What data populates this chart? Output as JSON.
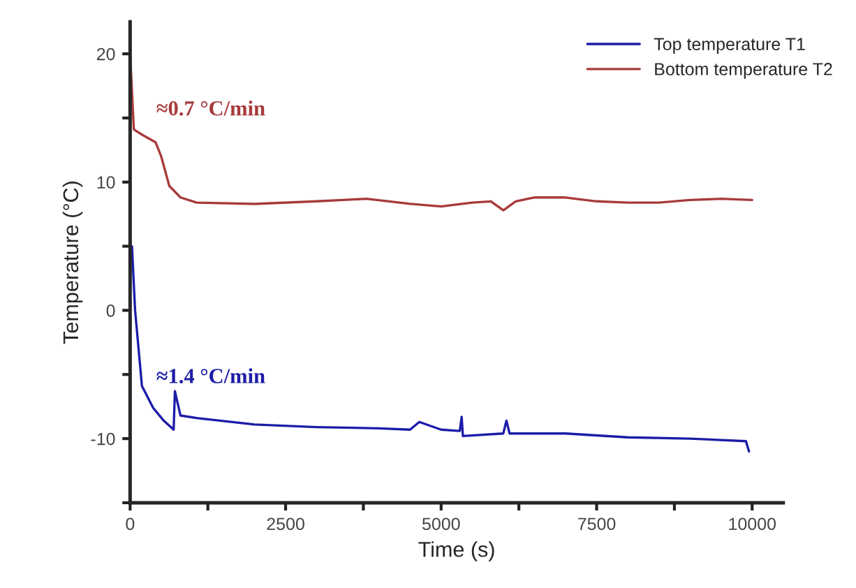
{
  "chart_data": {
    "type": "line",
    "xlabel": "Time (s)",
    "ylabel": "Temperature (°C)",
    "xlim": [
      0,
      10500
    ],
    "ylim": [
      -15,
      22.5
    ],
    "xticks": [
      0,
      {
        "value": 1250,
        "label": null
      },
      2500,
      {
        "value": 3750,
        "label": null
      },
      5000,
      {
        "value": 6250,
        "label": null
      },
      7500,
      {
        "value": 8750,
        "label": null
      },
      10000
    ],
    "yticks": [
      {
        "value": -15,
        "label": null
      },
      -10,
      {
        "value": -5,
        "label": null
      },
      0,
      {
        "value": 5,
        "label": null
      },
      10,
      {
        "value": 15,
        "label": null
      },
      20
    ],
    "grid": false,
    "legend": "top right",
    "series": [
      {
        "name": "Top temperature T1",
        "color": "#1c1ca8",
        "x": [
          30,
          80,
          190,
          370,
          540,
          700,
          720,
          810,
          1070,
          2000,
          3000,
          4000,
          4500,
          4650,
          5000,
          5300,
          5330,
          5350,
          6000,
          6050,
          6100,
          7000,
          8000,
          9000,
          9900,
          9950
        ],
        "values": [
          5,
          0,
          -5.9,
          -7.6,
          -8.6,
          -9.3,
          -6.3,
          -8.2,
          -8.4,
          -8.9,
          -9.1,
          -9.2,
          -9.3,
          -8.7,
          -9.3,
          -9.4,
          -8.3,
          -9.8,
          -9.6,
          -8.6,
          -9.6,
          -9.6,
          -9.9,
          -10.0,
          -10.2,
          -11.0
        ]
      },
      {
        "name": "Bottom temperature T2",
        "color": "#a83a3a",
        "x": [
          0,
          60,
          190,
          410,
          500,
          630,
          810,
          1070,
          2000,
          3000,
          3800,
          4500,
          5000,
          5500,
          5800,
          6000,
          6200,
          6500,
          7000,
          7500,
          8000,
          8500,
          9000,
          9500,
          10000
        ],
        "values": [
          20,
          14.1,
          13.7,
          13.1,
          12.0,
          9.7,
          8.8,
          8.4,
          8.3,
          8.5,
          8.7,
          8.3,
          8.1,
          8.4,
          8.5,
          7.8,
          8.5,
          8.8,
          8.8,
          8.5,
          8.4,
          8.4,
          8.6,
          8.7,
          8.6
        ]
      }
    ],
    "annotations": [
      "≈0.7 °C/min",
      "≈1.4 °C/min"
    ]
  }
}
